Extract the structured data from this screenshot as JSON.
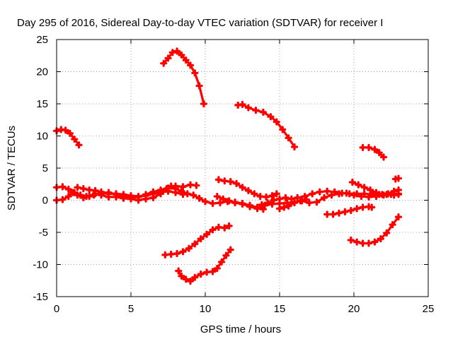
{
  "chart_data": {
    "type": "scatter",
    "title": "Day 295 of 2016, Sidereal Day-to-day VTEC variation (SDTVAR) for receiver I",
    "xlabel": "GPS time / hours",
    "ylabel": "SDTVAR / TECUs",
    "xlim": [
      0,
      25
    ],
    "ylim": [
      -15,
      25
    ],
    "xticks": [
      "0",
      "5",
      "10",
      "15",
      "20",
      "25"
    ],
    "yticks": [
      "-15",
      "-10",
      "-5",
      "0",
      "5",
      "10",
      "15",
      "20",
      "25"
    ],
    "grid": true,
    "legend": "none",
    "color": "#ff0000",
    "tracks": [
      [
        [
          0.0,
          10.8
        ],
        [
          0.3,
          11.0
        ],
        [
          0.6,
          10.9
        ],
        [
          0.9,
          10.4
        ],
        [
          1.2,
          9.5
        ],
        [
          1.5,
          8.6
        ]
      ],
      [
        [
          7.2,
          21.3
        ],
        [
          7.5,
          22.1
        ],
        [
          7.8,
          23.0
        ],
        [
          8.1,
          23.2
        ],
        [
          8.4,
          22.6
        ],
        [
          8.7,
          21.8
        ],
        [
          9.0,
          21.0
        ],
        [
          9.3,
          19.8
        ],
        [
          9.6,
          17.8
        ],
        [
          9.9,
          15.0
        ]
      ],
      [
        [
          12.2,
          14.8
        ],
        [
          12.5,
          14.9
        ],
        [
          12.9,
          14.4
        ],
        [
          13.4,
          14.0
        ],
        [
          13.9,
          13.7
        ],
        [
          14.4,
          13.0
        ],
        [
          14.8,
          12.2
        ],
        [
          15.2,
          11.0
        ],
        [
          15.6,
          9.7
        ],
        [
          16.0,
          8.3
        ]
      ],
      [
        [
          20.6,
          8.2
        ],
        [
          21.0,
          8.2
        ],
        [
          21.4,
          7.9
        ],
        [
          21.7,
          7.4
        ],
        [
          22.0,
          6.7
        ]
      ],
      [
        [
          0.0,
          2.0
        ],
        [
          0.4,
          2.1
        ],
        [
          0.8,
          1.7
        ],
        [
          1.2,
          1.2
        ],
        [
          1.6,
          0.8
        ],
        [
          2.0,
          0.6
        ],
        [
          2.5,
          0.8
        ],
        [
          3.0,
          1.1
        ],
        [
          3.5,
          1.2
        ],
        [
          4.0,
          0.9
        ],
        [
          4.5,
          0.6
        ],
        [
          5.0,
          0.4
        ],
        [
          5.5,
          0.5
        ],
        [
          6.0,
          0.9
        ],
        [
          6.5,
          1.3
        ],
        [
          7.0,
          1.6
        ],
        [
          7.5,
          1.9
        ],
        [
          8.0,
          2.2
        ],
        [
          8.5,
          2.1
        ],
        [
          9.0,
          2.4
        ],
        [
          9.4,
          2.3
        ]
      ],
      [
        [
          0.0,
          0.0
        ],
        [
          0.4,
          0.1
        ],
        [
          0.8,
          0.6
        ],
        [
          1.1,
          1.2
        ],
        [
          1.4,
          0.8
        ],
        [
          1.8,
          0.4
        ],
        [
          2.2,
          0.6
        ],
        [
          2.6,
          1.0
        ],
        [
          3.0,
          0.8
        ],
        [
          3.5,
          0.5
        ],
        [
          4.0,
          0.5
        ],
        [
          4.5,
          0.3
        ],
        [
          5.0,
          0.2
        ],
        [
          5.5,
          0.0
        ],
        [
          6.0,
          0.2
        ],
        [
          6.5,
          0.4
        ],
        [
          7.0,
          1.0
        ],
        [
          7.4,
          1.8
        ],
        [
          7.7,
          2.2
        ],
        [
          8.0,
          1.8
        ],
        [
          8.4,
          1.4
        ],
        [
          8.8,
          1.0
        ],
        [
          9.2,
          0.8
        ],
        [
          9.6,
          0.3
        ],
        [
          10.0,
          -0.2
        ],
        [
          10.5,
          -0.5
        ],
        [
          11.0,
          -0.4
        ],
        [
          11.5,
          -0.2
        ],
        [
          12.0,
          -0.3
        ],
        [
          12.5,
          -0.5
        ],
        [
          13.0,
          -0.8
        ],
        [
          13.5,
          -1.1
        ],
        [
          14.0,
          -0.8
        ],
        [
          14.5,
          -0.6
        ],
        [
          15.0,
          -0.5
        ],
        [
          15.5,
          -0.4
        ],
        [
          16.0,
          -0.3
        ],
        [
          16.5,
          -0.1
        ],
        [
          17.0,
          -0.4
        ],
        [
          17.5,
          -0.3
        ],
        [
          18.0,
          0.4
        ],
        [
          18.5,
          0.8
        ],
        [
          19.0,
          1.0
        ],
        [
          19.5,
          1.1
        ],
        [
          20.0,
          0.8
        ],
        [
          20.5,
          0.6
        ],
        [
          21.0,
          0.5
        ],
        [
          21.5,
          0.6
        ],
        [
          22.0,
          0.8
        ],
        [
          22.5,
          0.9
        ],
        [
          23.0,
          1.0
        ]
      ],
      [
        [
          1.4,
          2.0
        ],
        [
          1.8,
          1.8
        ],
        [
          2.2,
          1.6
        ],
        [
          2.6,
          1.5
        ],
        [
          3.0,
          1.3
        ],
        [
          3.5,
          1.0
        ],
        [
          4.0,
          1.0
        ],
        [
          4.5,
          0.9
        ],
        [
          5.0,
          0.7
        ],
        [
          5.5,
          0.6
        ],
        [
          6.0,
          0.7
        ],
        [
          6.5,
          1.0
        ],
        [
          7.0,
          1.2
        ],
        [
          7.5,
          1.4
        ],
        [
          8.0,
          1.2
        ],
        [
          8.5,
          0.9
        ]
      ],
      [
        [
          10.8,
          0.6
        ],
        [
          11.2,
          0.2
        ],
        [
          11.6,
          -0.1
        ],
        [
          12.0,
          -0.4
        ],
        [
          12.5,
          -0.6
        ],
        [
          13.0,
          -1.0
        ],
        [
          13.5,
          -1.3
        ],
        [
          13.9,
          -1.4
        ]
      ],
      [
        [
          10.9,
          3.2
        ],
        [
          11.3,
          3.0
        ],
        [
          11.7,
          2.9
        ],
        [
          12.1,
          2.6
        ],
        [
          12.5,
          2.0
        ],
        [
          12.9,
          1.5
        ],
        [
          13.3,
          1.0
        ],
        [
          13.7,
          0.6
        ],
        [
          14.1,
          0.5
        ],
        [
          14.5,
          0.7
        ],
        [
          14.8,
          1.0
        ]
      ],
      [
        [
          13.8,
          -0.7
        ],
        [
          14.2,
          -0.4
        ],
        [
          14.6,
          0.0
        ],
        [
          15.0,
          0.2
        ],
        [
          15.4,
          0.4
        ],
        [
          15.8,
          0.2
        ],
        [
          16.2,
          0.4
        ],
        [
          16.7,
          0.6
        ],
        [
          17.2,
          1.0
        ],
        [
          17.7,
          1.3
        ],
        [
          18.2,
          1.4
        ],
        [
          18.7,
          1.3
        ],
        [
          19.2,
          1.1
        ],
        [
          19.7,
          1.0
        ],
        [
          20.2,
          1.0
        ],
        [
          20.7,
          1.0
        ],
        [
          21.2,
          0.9
        ],
        [
          21.7,
          0.9
        ],
        [
          22.2,
          0.9
        ],
        [
          22.7,
          0.8
        ],
        [
          23.0,
          0.9
        ]
      ],
      [
        [
          15.0,
          -1.3
        ],
        [
          15.3,
          -1.1
        ],
        [
          15.6,
          -0.9
        ],
        [
          16.0,
          -0.4
        ],
        [
          16.4,
          -0.1
        ],
        [
          16.8,
          0.1
        ]
      ],
      [
        [
          18.2,
          -2.2
        ],
        [
          18.6,
          -2.2
        ],
        [
          19.0,
          -2.0
        ],
        [
          19.4,
          -1.8
        ],
        [
          19.8,
          -1.6
        ],
        [
          20.2,
          -1.3
        ],
        [
          20.6,
          -1.1
        ],
        [
          21.0,
          -1.0
        ],
        [
          21.2,
          -1.1
        ]
      ],
      [
        [
          19.9,
          2.8
        ],
        [
          20.3,
          2.4
        ],
        [
          20.7,
          2.0
        ],
        [
          21.1,
          1.6
        ],
        [
          21.5,
          1.2
        ],
        [
          21.9,
          0.9
        ],
        [
          22.3,
          1.0
        ],
        [
          22.7,
          1.4
        ],
        [
          23.0,
          1.6
        ]
      ],
      [
        [
          22.8,
          3.3
        ],
        [
          23.0,
          3.4
        ]
      ],
      [
        [
          7.3,
          -8.5
        ],
        [
          7.7,
          -8.4
        ],
        [
          8.1,
          -8.3
        ],
        [
          8.5,
          -8.0
        ],
        [
          8.9,
          -7.5
        ],
        [
          9.3,
          -6.8
        ],
        [
          9.7,
          -6.0
        ],
        [
          10.1,
          -5.3
        ],
        [
          10.5,
          -4.6
        ],
        [
          10.9,
          -4.2
        ],
        [
          11.3,
          -4.3
        ],
        [
          11.6,
          -4.0
        ]
      ],
      [
        [
          8.2,
          -11.0
        ],
        [
          8.4,
          -11.8
        ],
        [
          8.7,
          -12.3
        ],
        [
          9.0,
          -12.6
        ],
        [
          9.3,
          -12.0
        ],
        [
          9.7,
          -11.5
        ],
        [
          10.1,
          -11.2
        ],
        [
          10.5,
          -11.1
        ],
        [
          10.8,
          -10.6
        ],
        [
          11.1,
          -9.6
        ],
        [
          11.4,
          -8.6
        ],
        [
          11.7,
          -7.7
        ]
      ],
      [
        [
          19.8,
          -6.2
        ],
        [
          20.2,
          -6.5
        ],
        [
          20.6,
          -6.7
        ],
        [
          21.0,
          -6.7
        ],
        [
          21.4,
          -6.5
        ],
        [
          21.8,
          -6.0
        ],
        [
          22.2,
          -5.1
        ],
        [
          22.6,
          -3.8
        ],
        [
          23.0,
          -2.6
        ]
      ]
    ]
  }
}
